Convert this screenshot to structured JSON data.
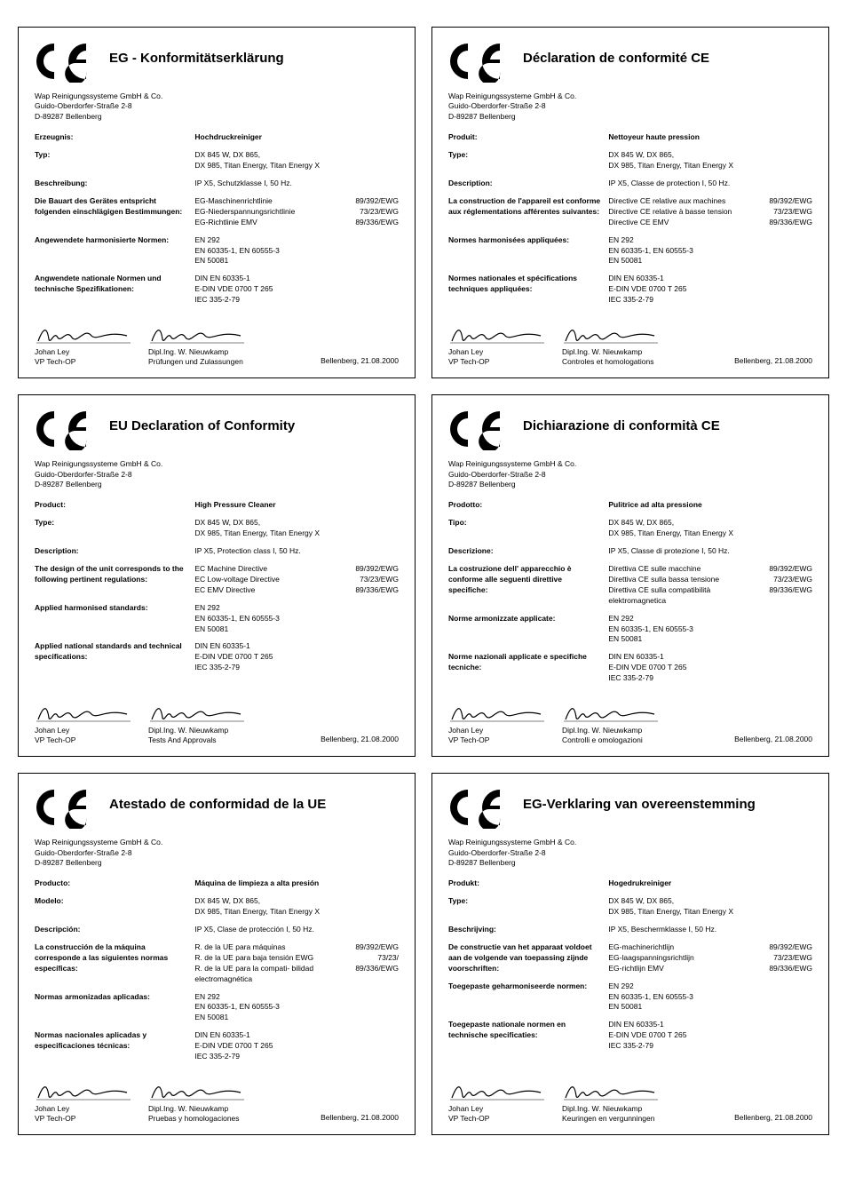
{
  "company": {
    "line1": "Wap Reinigungssysteme GmbH & Co.",
    "line2": "Guido-Oberdorfer-Straße 2-8",
    "line3": "D-89287 Bellenberg"
  },
  "signatures": {
    "left": {
      "name": "Johan Ley",
      "role": "VP Tech-OP"
    },
    "right": {
      "name": "Dipl.Ing. W. Nieuwkamp"
    }
  },
  "place_date": "Bellenberg, 21.08.2000",
  "common_values": {
    "type_line1": "DX 845 W, DX 865,",
    "type_line2": "DX 985, Titan Energy, Titan Energy X",
    "harm_std_1": "EN 292",
    "harm_std_2": "EN 60335-1, EN 60555-3",
    "harm_std_3": "EN 50081",
    "nat_std_1": "DIN EN 60335-1",
    "nat_std_2": "E-DIN VDE 0700 T 265",
    "nat_std_3": "IEC 335-2-79",
    "dir_code_1": "89/392/EWG",
    "dir_code_2": "73/23/EWG",
    "dir_code_3": "89/336/EWG"
  },
  "cards": {
    "de": {
      "title": "EG - Konformitätserklärung",
      "labels": {
        "product": "Erzeugnis:",
        "type": "Typ:",
        "description": "Beschreibung:",
        "design": "Die Bauart des Gerätes entspricht folgenden einschlägigen Bestimmungen:",
        "harm": "Angewendete harmonisierte Normen:",
        "nat": "Angwendete nationale Normen und technische Spezifikationen:"
      },
      "values": {
        "product": "Hochdruckreiniger",
        "description": "IP X5, Schutzklasse I, 50 Hz.",
        "dir1": "EG-Maschinenrichtlinie",
        "dir2": "EG-Niederspannungsrichtlinie",
        "dir3": "EG-Richtlinie EMV"
      },
      "sig_right_role": "Prüfungen und Zulassungen"
    },
    "fr": {
      "title": "Déclaration de conformité CE",
      "labels": {
        "product": "Produit:",
        "type": "Type:",
        "description": "Description:",
        "design": "La construction de l'appareil est conforme aux réglementations afférentes suivantes:",
        "harm": "Normes harmonisées appliquées:",
        "nat": "Normes nationales et spécifications techniques appliquées:"
      },
      "values": {
        "product": "Nettoyeur haute pression",
        "description": "IP X5, Classe de protection I, 50 Hz.",
        "dir1": "Directive CE relative aux machines",
        "dir2": "Directive CE relative à basse tension",
        "dir3": "Directive CE EMV"
      },
      "sig_right_role": "Controles et homologations"
    },
    "en": {
      "title": "EU Declaration of Conformity",
      "labels": {
        "product": "Product:",
        "type": "Type:",
        "description": "Description:",
        "design": "The design of the unit corresponds to the following pertinent regulations:",
        "harm": "Applied harmonised standards:",
        "nat": "Applied national standards and technical specifications:"
      },
      "values": {
        "product": "High Pressure Cleaner",
        "description": "IP X5, Protection class I, 50 Hz.",
        "dir1": "EC Machine Directive",
        "dir2": "EC Low-voltage Directive",
        "dir3": "EC EMV Directive"
      },
      "sig_right_role": "Tests And Approvals"
    },
    "it": {
      "title": "Dichiarazione di conformità CE",
      "labels": {
        "product": "Prodotto:",
        "type": "Tipo:",
        "description": "Descrizione:",
        "design": "La costruzione dell' apparecchio è conforme alle seguenti direttive specifiche:",
        "harm": "Norme armonizzate applicate:",
        "nat": "Norme nazionali applicate e specifiche tecniche:"
      },
      "values": {
        "product": "Pulitrice ad alta pressione",
        "description": "IP X5, Classe di protezione I, 50 Hz.",
        "dir1": "Direttiva CE sulle macchine",
        "dir2": "Direttiva CE sulla bassa tensione",
        "dir3": "Direttiva CE sulla compatibilità elektromagnetica"
      },
      "sig_right_role": "Controlli e omologazioni"
    },
    "es": {
      "title": "Atestado de conformidad de la UE",
      "labels": {
        "product": "Producto:",
        "type": "Modelo:",
        "description": "Descripción:",
        "design": "La construcción de la máquina corresponde a las siguientes normas específicas:",
        "harm": "Normas armonizadas aplicadas:",
        "nat": "Normas nacionales aplicadas y especificaciones técnicas:"
      },
      "values": {
        "product": "Máquina de limpieza a alta presión",
        "description": "IP X5, Clase de protección I, 50 Hz.",
        "dir1": "R. de la UE para máquinas",
        "dir2": "R. de la UE para baja tensión EWG",
        "dir3": "R. de la UE para la compati- bilidad electromagnética",
        "dir_code_2_override": "73/23/"
      },
      "sig_right_role": "Pruebas y homologaciones"
    },
    "nl": {
      "title": "EG-Verklaring van overeenstemming",
      "labels": {
        "product": "Produkt:",
        "type": "Type:",
        "description": "Beschrijving:",
        "design": "De constructie van het apparaat voldoet aan de volgende van toepassing zijnde voorschriften:",
        "harm": "Toegepaste geharmoniseerde normen:",
        "nat": "Toegepaste nationale normen en technische specificaties:"
      },
      "values": {
        "product": "Hogedrukreiniger",
        "description": "IP X5, Beschermklasse I, 50 Hz.",
        "dir1": "EG-machinerichtlijn",
        "dir2": "EG-laagspanningsrichtlijn",
        "dir3": "EG-richtlijn EMV"
      },
      "sig_right_role": "Keuringen en vergunningen"
    }
  },
  "card_order": [
    "de",
    "fr",
    "en",
    "it",
    "es",
    "nl"
  ]
}
